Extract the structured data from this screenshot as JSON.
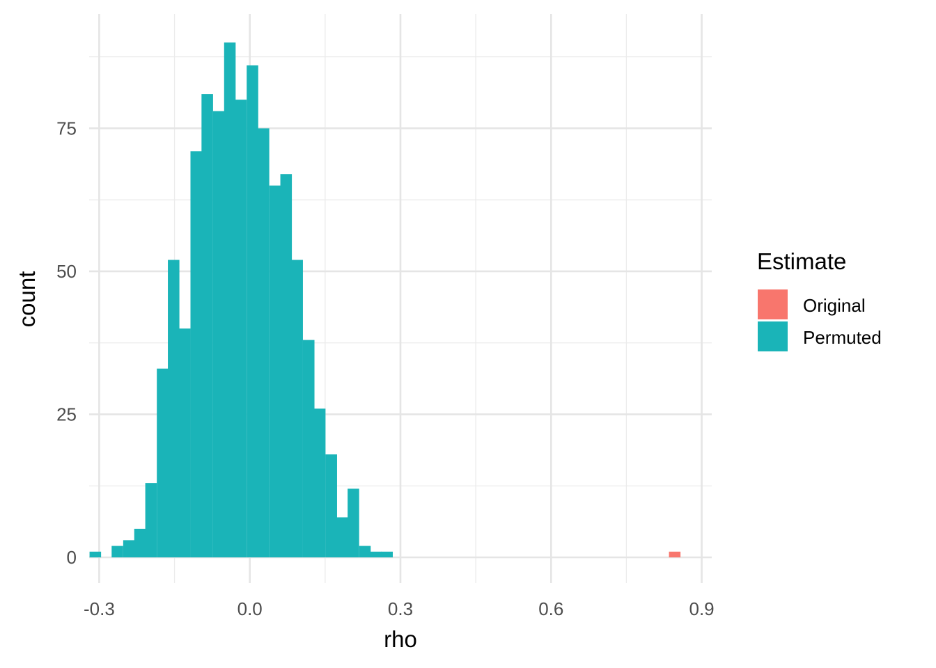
{
  "chart_data": {
    "type": "bar",
    "subtype": "histogram",
    "title": "",
    "xlabel": "rho",
    "ylabel": "count",
    "xlim": [
      -0.32,
      0.92
    ],
    "ylim": [
      -4.5,
      95
    ],
    "x_ticks": [
      -0.3,
      0.0,
      0.3,
      0.6,
      0.9
    ],
    "x_tick_labels": [
      "-0.3",
      "0.0",
      "0.3",
      "0.6",
      "0.9"
    ],
    "y_ticks": [
      0,
      25,
      50,
      75
    ],
    "y_tick_labels": [
      "0",
      "25",
      "50",
      "75"
    ],
    "grid": true,
    "bin_width": 0.0224,
    "legend": {
      "title": "Estimate",
      "position": "right",
      "entries": [
        {
          "name": "Original",
          "color": "#F8766D"
        },
        {
          "name": "Permuted",
          "color": "#1AB4B8"
        }
      ]
    },
    "series": [
      {
        "name": "Permuted",
        "color": "#1AB4B8",
        "bin_centers": [
          -0.308,
          -0.264,
          -0.241,
          -0.219,
          -0.197,
          -0.174,
          -0.152,
          -0.13,
          -0.107,
          -0.085,
          -0.062,
          -0.04,
          -0.018,
          0.005,
          0.027,
          0.05,
          0.072,
          0.094,
          0.117,
          0.139,
          0.162,
          0.184,
          0.206,
          0.229,
          0.251,
          0.273,
          0.296,
          0.318
        ],
        "values": [
          1,
          2,
          3,
          5,
          13,
          33,
          52,
          40,
          71,
          81,
          78,
          90,
          80,
          86,
          75,
          65,
          67,
          52,
          38,
          26,
          18,
          7,
          12,
          2,
          1,
          1,
          0,
          0
        ]
      },
      {
        "name": "Original",
        "color": "#F8766D",
        "bin_centers": [
          0.846
        ],
        "values": [
          1
        ]
      }
    ]
  }
}
